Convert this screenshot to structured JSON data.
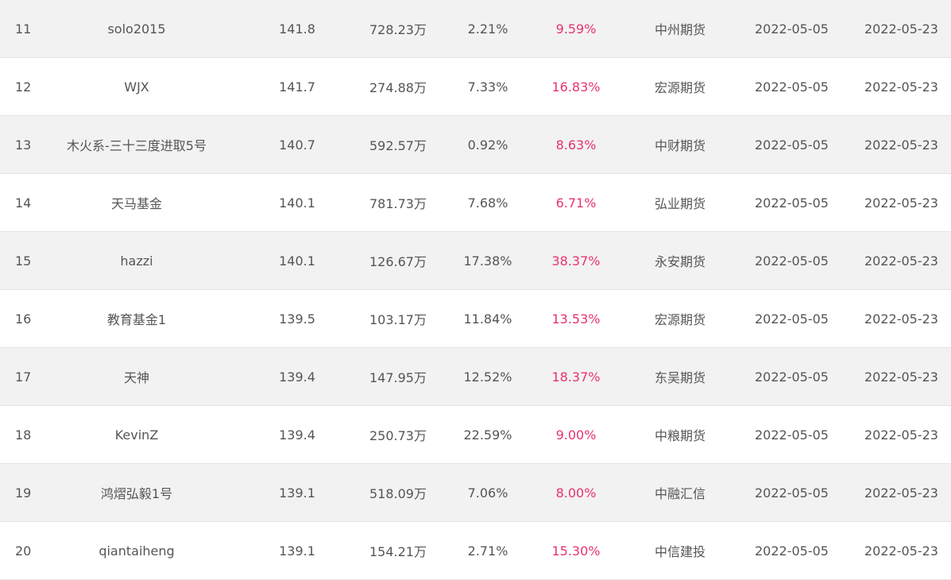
{
  "rows": [
    {
      "rank": "11",
      "name": "solo2015",
      "score": "141.8",
      "equity": "728.23万",
      "drawdown": "2.21%",
      "return": "9.59%",
      "broker": "中州期货",
      "start": "2022-05-05",
      "end": "2022-05-23"
    },
    {
      "rank": "12",
      "name": "WJX",
      "score": "141.7",
      "equity": "274.88万",
      "drawdown": "7.33%",
      "return": "16.83%",
      "broker": "宏源期货",
      "start": "2022-05-05",
      "end": "2022-05-23"
    },
    {
      "rank": "13",
      "name": "木火系-三十三度进取5号",
      "score": "140.7",
      "equity": "592.57万",
      "drawdown": "0.92%",
      "return": "8.63%",
      "broker": "中财期货",
      "start": "2022-05-05",
      "end": "2022-05-23"
    },
    {
      "rank": "14",
      "name": "天马基金",
      "score": "140.1",
      "equity": "781.73万",
      "drawdown": "7.68%",
      "return": "6.71%",
      "broker": "弘业期货",
      "start": "2022-05-05",
      "end": "2022-05-23"
    },
    {
      "rank": "15",
      "name": "hazzi",
      "score": "140.1",
      "equity": "126.67万",
      "drawdown": "17.38%",
      "return": "38.37%",
      "broker": "永安期货",
      "start": "2022-05-05",
      "end": "2022-05-23"
    },
    {
      "rank": "16",
      "name": "教育基金1",
      "score": "139.5",
      "equity": "103.17万",
      "drawdown": "11.84%",
      "return": "13.53%",
      "broker": "宏源期货",
      "start": "2022-05-05",
      "end": "2022-05-23"
    },
    {
      "rank": "17",
      "name": "天神",
      "score": "139.4",
      "equity": "147.95万",
      "drawdown": "12.52%",
      "return": "18.37%",
      "broker": "东吴期货",
      "start": "2022-05-05",
      "end": "2022-05-23"
    },
    {
      "rank": "18",
      "name": "KevinZ",
      "score": "139.4",
      "equity": "250.73万",
      "drawdown": "22.59%",
      "return": "9.00%",
      "broker": "中粮期货",
      "start": "2022-05-05",
      "end": "2022-05-23"
    },
    {
      "rank": "19",
      "name": "鸿熠弘毅1号",
      "score": "139.1",
      "equity": "518.09万",
      "drawdown": "7.06%",
      "return": "8.00%",
      "broker": "中融汇信",
      "start": "2022-05-05",
      "end": "2022-05-23"
    },
    {
      "rank": "20",
      "name": "qiantaiheng",
      "score": "139.1",
      "equity": "154.21万",
      "drawdown": "2.71%",
      "return": "15.30%",
      "broker": "中信建投",
      "start": "2022-05-05",
      "end": "2022-05-23"
    }
  ],
  "colors": {
    "return_text": "#e8336f",
    "odd_row_bg": "#f2f2f2",
    "even_row_bg": "#ffffff",
    "text": "#555555"
  }
}
